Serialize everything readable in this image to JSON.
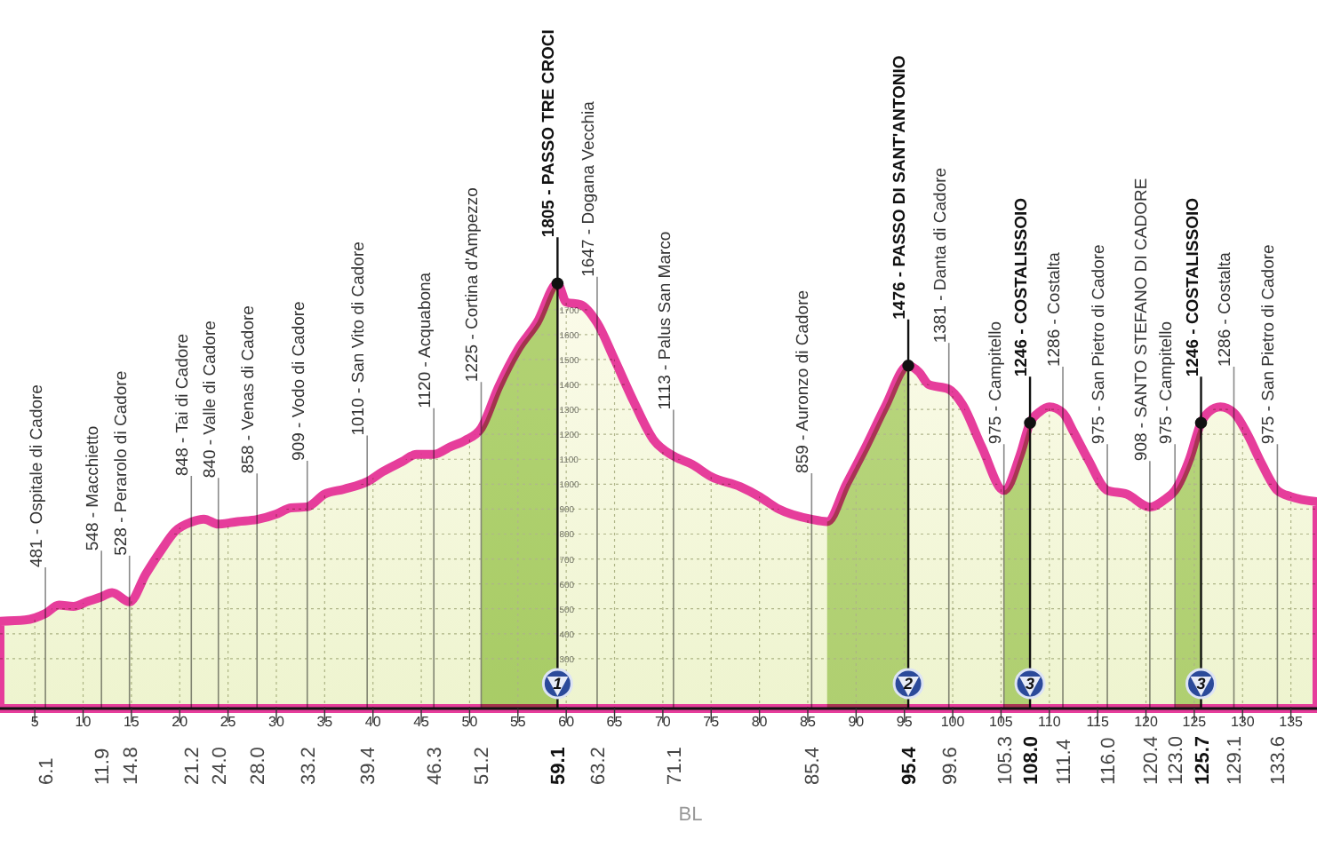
{
  "chart_data": {
    "type": "area",
    "xlim": [
      1.4,
      137.7
    ],
    "ylim": [
      100,
      2800
    ],
    "xticks": [
      5,
      10,
      15,
      20,
      25,
      30,
      35,
      40,
      45,
      50,
      55,
      60,
      65,
      70,
      75,
      80,
      85,
      90,
      95,
      100,
      105,
      110,
      115,
      120,
      125,
      130,
      135
    ],
    "x2lim": [
      1.4,
      137.7
    ],
    "x2ticks": [
      6.1,
      11.9,
      14.8,
      21.2,
      {
        "value": 24.0,
        "label": "24.0"
      },
      {
        "value": 28.0,
        "label": "28.0"
      },
      33.2,
      39.4,
      46.3,
      51.2,
      59.1,
      63.2,
      71.1,
      85.4,
      95.4,
      99.6,
      105.3,
      {
        "value": 108.0,
        "label": "108.0"
      },
      111.4,
      {
        "value": 116.0,
        "label": "116.0"
      },
      120.4,
      {
        "value": 123.0,
        "label": "123.0"
      },
      125.7,
      129.1,
      133.6
    ],
    "yticks": [
      300,
      400,
      500,
      600,
      700,
      800,
      900,
      1000,
      1100,
      1200,
      1300,
      1400,
      1500,
      1600,
      1700
    ],
    "grid": true,
    "series": [
      {
        "color": "#e63d9b",
        "x": [
          1.4,
          4,
          6.1,
          7.5,
          9,
          10.5,
          11.9,
          13,
          14.8,
          16.5,
          18,
          19.5,
          21.2,
          22.5,
          24,
          26,
          28,
          30,
          31.5,
          33.2,
          35,
          37,
          39.4,
          41,
          43,
          44.5,
          46.3,
          48,
          49.5,
          51.2,
          53,
          55,
          57,
          59.1,
          60,
          61.5,
          63.2,
          65,
          67,
          69,
          71.1,
          73,
          75,
          78,
          80,
          82,
          85.4,
          87,
          89,
          91,
          93,
          95.4,
          96.5,
          97.5,
          99.6,
          101,
          103,
          105.3,
          107,
          108,
          109,
          110,
          111.4,
          112.5,
          114,
          116,
          118,
          120.4,
          122,
          123,
          124.5,
          125.7,
          126.5,
          127.7,
          129.1,
          130.5,
          132,
          133.6,
          135,
          137.7
        ],
        "values": [
          450,
          455,
          481,
          515,
          510,
          530,
          548,
          565,
          528,
          640,
          730,
          810,
          848,
          860,
          840,
          850,
          858,
          880,
          905,
          909,
          960,
          980,
          1010,
          1050,
          1090,
          1120,
          1120,
          1150,
          1175,
          1225,
          1390,
          1540,
          1650,
          1805,
          1730,
          1720,
          1647,
          1500,
          1330,
          1180,
          1113,
          1080,
          1030,
          990,
          950,
          900,
          859,
          850,
          1000,
          1150,
          1310,
          1476,
          1450,
          1400,
          1381,
          1320,
          1150,
          975,
          1120,
          1246,
          1290,
          1310,
          1286,
          1210,
          1100,
          975,
          960,
          908,
          940,
          975,
          1100,
          1246,
          1290,
          1310,
          1286,
          1200,
          1080,
          975,
          950,
          930
        ]
      },
      {
        "type": "scatter",
        "color": "#111111",
        "marker": "circle",
        "x": [
          59.1,
          95.4,
          108.0,
          125.7
        ],
        "values": [
          1805,
          1476,
          1246,
          1246
        ]
      }
    ],
    "bands": [
      {
        "axis": "x",
        "from": 51.2,
        "to": 59.1,
        "color": "#b5d67e"
      },
      {
        "axis": "x",
        "from": 87,
        "to": 95.4,
        "color": "#bcd98a"
      },
      {
        "axis": "x",
        "from": 105.3,
        "to": 108.0,
        "color": "#bcd98a"
      },
      {
        "axis": "x",
        "from": 123.0,
        "to": 125.7,
        "color": "#bcd98a"
      }
    ],
    "annotations": [
      {
        "text": "481 - Ospitale di Cadore",
        "x": 6.1,
        "y": 481
      },
      {
        "text": "548 - Macchietto",
        "x": 11.9,
        "y": 548
      },
      {
        "text": "528 - Perarolo di Cadore",
        "x": 14.8,
        "y": 528
      },
      {
        "text": "848 - Tai di Cadore",
        "x": 21.2,
        "y": 848
      },
      {
        "text": "840 - Valle di Cadore",
        "x": 24.0,
        "y": 840
      },
      {
        "text": "858 - Venas di Cadore",
        "x": 28.0,
        "y": 858
      },
      {
        "text": "909 - Vodo di Cadore",
        "x": 33.2,
        "y": 909
      },
      {
        "text": "1010 - San Vito di Cadore",
        "x": 39.4,
        "y": 1010
      },
      {
        "text": "1120 - Acquabona",
        "x": 46.3,
        "y": 1120
      },
      {
        "text": "1225 - Cortina d'Ampezzo",
        "x": 51.2,
        "y": 1225
      },
      {
        "text": "1805 - PASSO TRE CROCI",
        "x": 59.1,
        "y": 1805
      },
      {
        "text": "1647 - Dogana Vecchia",
        "x": 63.2,
        "y": 1647
      },
      {
        "text": "1113 - Palus San Marco",
        "x": 71.1,
        "y": 1113
      },
      {
        "text": "859 - Auronzo di Cadore",
        "x": 85.4,
        "y": 859
      },
      {
        "text": "1476 - PASSO DI SANT'ANTONIO",
        "x": 95.4,
        "y": 1476
      },
      {
        "text": "1381 - Danta di Cadore",
        "x": 99.6,
        "y": 1381
      },
      {
        "text": "975 - Campitello",
        "x": 105.3,
        "y": 975
      },
      {
        "text": "1246 - COSTALISSOIO",
        "x": 108.0,
        "y": 1246
      },
      {
        "text": "1286 - Costalta",
        "x": 111.4,
        "y": 1286
      },
      {
        "text": "975 - San Pietro di Cadore",
        "x": 116.0,
        "y": 975
      },
      {
        "text": "908 - SANTO STEFANO DI CADORE",
        "x": 120.4,
        "y": 908
      },
      {
        "text": "975 - Campitello",
        "x": 123.0,
        "y": 975
      },
      {
        "text": "1246 - COSTALISSOIO",
        "x": 125.7,
        "y": 1246
      },
      {
        "text": "1286 - Costalta",
        "x": 129.1,
        "y": 1286
      },
      {
        "text": "975 - San Pietro di Cadore",
        "x": 133.6,
        "y": 975
      },
      {
        "text": "1",
        "x": 59.1,
        "y": 200
      },
      {
        "text": "2",
        "x": 95.4,
        "y": 200
      },
      {
        "text": "3",
        "x": 108.0,
        "y": 200
      },
      {
        "text": "3",
        "x": 125.7,
        "y": 200
      },
      "BL"
    ]
  }
}
